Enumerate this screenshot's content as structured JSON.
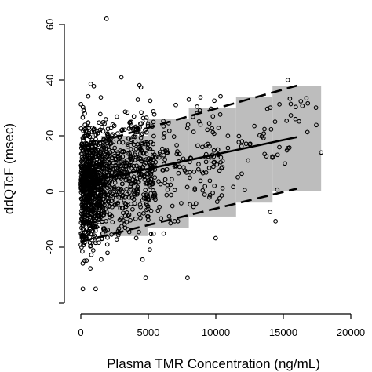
{
  "chart_data": {
    "type": "scatter",
    "xlabel": "Plasma TMR Concentration (ng/mL)",
    "ylabel": "ddQTcF (msec)",
    "xlim": [
      -500,
      21000
    ],
    "ylim": [
      -40,
      68
    ],
    "x_ticks": [
      0,
      5000,
      10000,
      15000,
      20000
    ],
    "y_ticks": [
      -20,
      0,
      20,
      40,
      60
    ],
    "grid": false,
    "colors": {
      "band": "#bdbdbd",
      "points": "#000000",
      "lines": "#000000",
      "background": "#ffffff"
    },
    "prediction_band": {
      "segments": [
        {
          "x0": 1500,
          "x1": 5000,
          "lower": -16,
          "upper": 20
        },
        {
          "x0": 5000,
          "x1": 8000,
          "lower": -13,
          "upper": 26
        },
        {
          "x0": 8000,
          "x1": 11500,
          "lower": -9,
          "upper": 30
        },
        {
          "x0": 11500,
          "x1": 14200,
          "lower": -4,
          "upper": 34
        },
        {
          "x0": 14200,
          "x1": 17800,
          "lower": 0,
          "upper": 38
        }
      ]
    },
    "regression_line": {
      "x": [
        0,
        16000
      ],
      "y": [
        3,
        19.5
      ]
    },
    "upper_interval": {
      "x": [
        0,
        16000
      ],
      "y": [
        16,
        38
      ]
    },
    "lower_interval": {
      "x": [
        0,
        16000
      ],
      "y": [
        -18,
        1
      ]
    },
    "points": {
      "count": 1500,
      "x_range": [
        0,
        18000
      ],
      "y_range": [
        -35,
        62
      ],
      "highlighted": [
        {
          "x": 1900,
          "y": 62
        },
        {
          "x": 3000,
          "y": 41
        },
        {
          "x": 8000,
          "y": 33
        },
        {
          "x": 15900,
          "y": 26
        },
        {
          "x": 17800,
          "y": 14
        },
        {
          "x": 4800,
          "y": -31
        },
        {
          "x": 7900,
          "y": -31
        },
        {
          "x": 150,
          "y": -35
        },
        {
          "x": 1100,
          "y": -35
        }
      ]
    }
  }
}
